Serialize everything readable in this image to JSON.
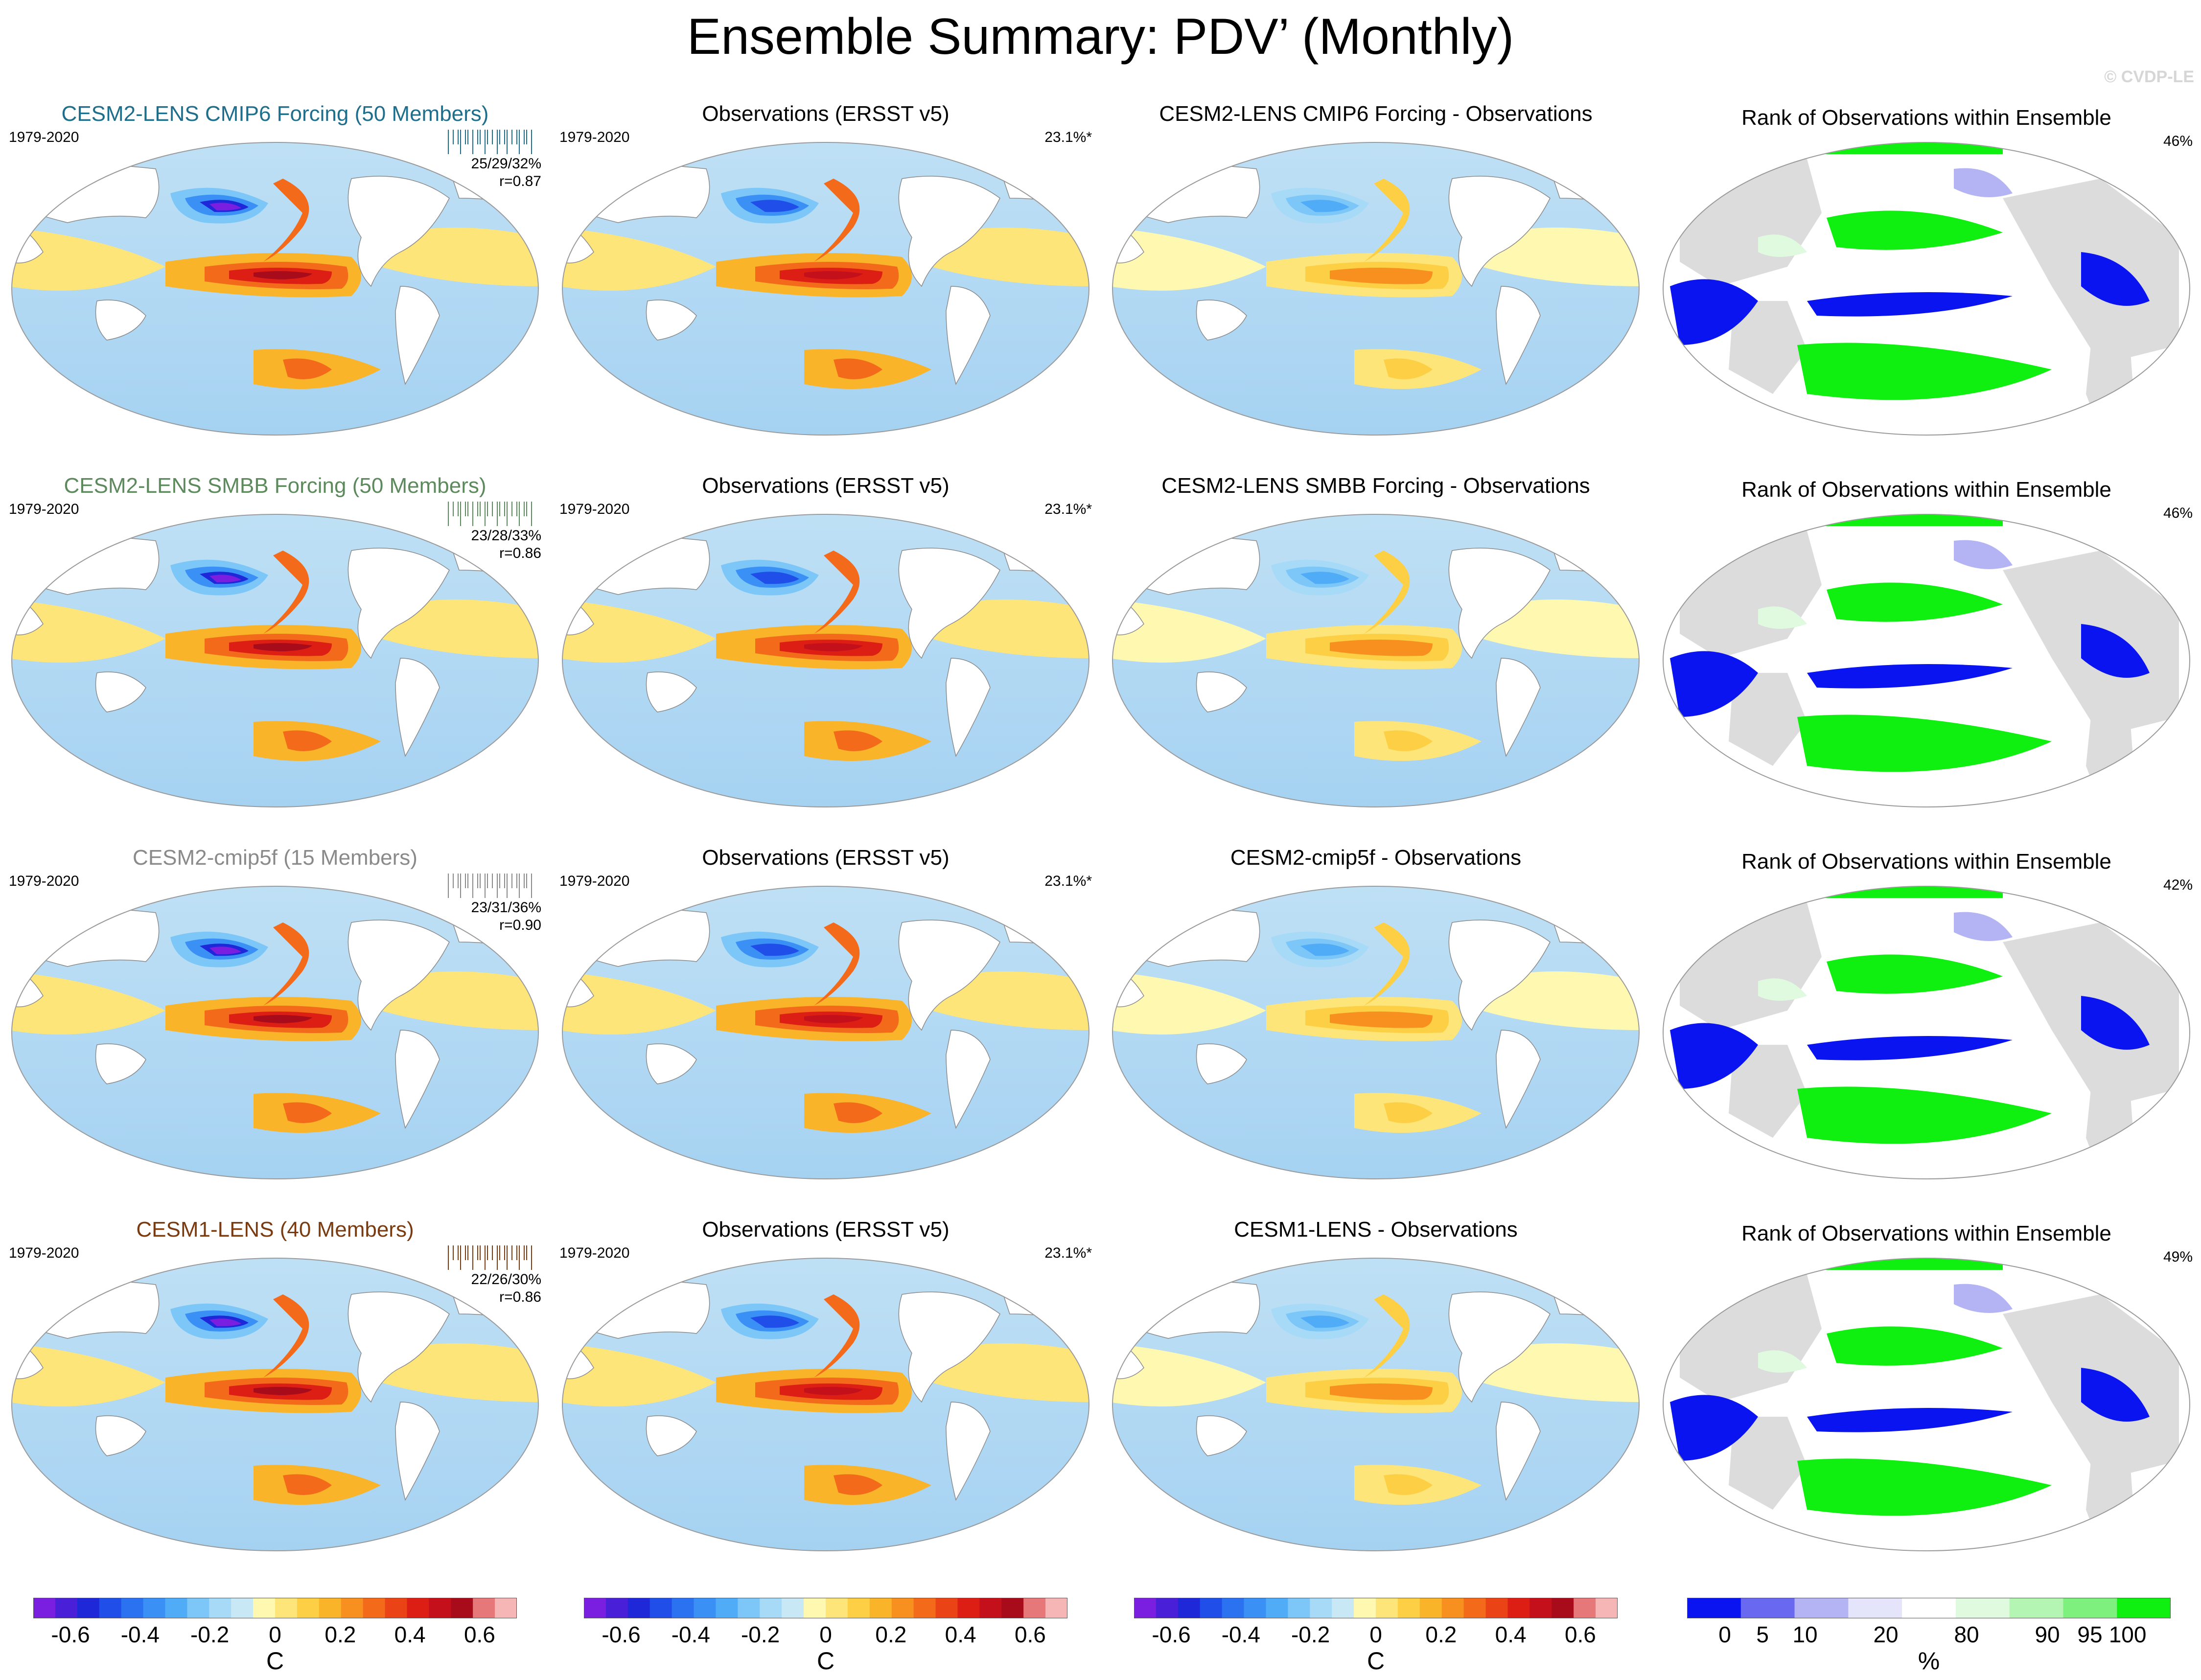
{
  "title": "Ensemble Summary: PDV’ (Monthly)",
  "watermark": "© CVDP-LE",
  "rows": [
    {
      "model_title": "CESM2-LENS CMIP6 Forcing (50 Members)",
      "model_color": "#1f6e8c",
      "period": "1979-2020",
      "stats_pct": "25/29/32%",
      "stats_r": "r=0.87",
      "obs_title": "Observations (ERSST v5)",
      "obs_period": "1979-2020",
      "obs_pct": "23.1%*",
      "diff_title": "CESM2-LENS CMIP6 Forcing - Observations",
      "rank_title": "Rank of Observations within Ensemble",
      "rank_pct": "46%"
    },
    {
      "model_title": "CESM2-LENS SMBB Forcing (50 Members)",
      "model_color": "#5c8a5c",
      "period": "1979-2020",
      "stats_pct": "23/28/33%",
      "stats_r": "r=0.86",
      "obs_title": "Observations (ERSST v5)",
      "obs_period": "1979-2020",
      "obs_pct": "23.1%*",
      "diff_title": "CESM2-LENS SMBB Forcing - Observations",
      "rank_title": "Rank of Observations within Ensemble",
      "rank_pct": "46%"
    },
    {
      "model_title": "CESM2-cmip5f (15 Members)",
      "model_color": "#8a8a8a",
      "period": "1979-2020",
      "stats_pct": "23/31/36%",
      "stats_r": "r=0.90",
      "obs_title": "Observations (ERSST v5)",
      "obs_period": "1979-2020",
      "obs_pct": "23.1%*",
      "diff_title": "CESM2-cmip5f - Observations",
      "rank_title": "Rank of Observations within Ensemble",
      "rank_pct": "42%"
    },
    {
      "model_title": "CESM1-LENS (40 Members)",
      "model_color": "#7a3b10",
      "period": "1979-2020",
      "stats_pct": "22/26/30%",
      "stats_r": "r=0.86",
      "obs_title": "Observations (ERSST v5)",
      "obs_period": "1979-2020",
      "obs_pct": "23.1%*",
      "diff_title": "CESM1-LENS - Observations",
      "rank_title": "Rank of Observations within Ensemble",
      "rank_pct": "49%"
    }
  ],
  "colorbar_temp": {
    "labels": [
      "-0.6",
      "-0.4",
      "-0.2",
      "0",
      "0.2",
      "0.4",
      "0.6"
    ],
    "unit": "C",
    "colors": [
      "#7a1fe0",
      "#4a1fd8",
      "#1f28d8",
      "#1f4ee8",
      "#2a72f0",
      "#3a90f5",
      "#50acf7",
      "#7cc6f8",
      "#a6daf7",
      "#c8e8f6",
      "#fff8b0",
      "#fde57a",
      "#fccf45",
      "#fab42a",
      "#f7901e",
      "#f26a1a",
      "#ea4416",
      "#dc1e14",
      "#c4101a",
      "#a80c1a",
      "#e6787a",
      "#f7b6b6"
    ]
  },
  "colorbar_rank": {
    "labels": [
      "0",
      "5",
      "10",
      "20",
      "80",
      "90",
      "95",
      "100"
    ],
    "unit": "%",
    "colors": [
      "#0a14f0",
      "#6868f0",
      "#b4b4f5",
      "#e4e4fa",
      "#ffffff",
      "#e0fae0",
      "#b4f5b4",
      "#7ef07e",
      "#10f010"
    ]
  }
}
